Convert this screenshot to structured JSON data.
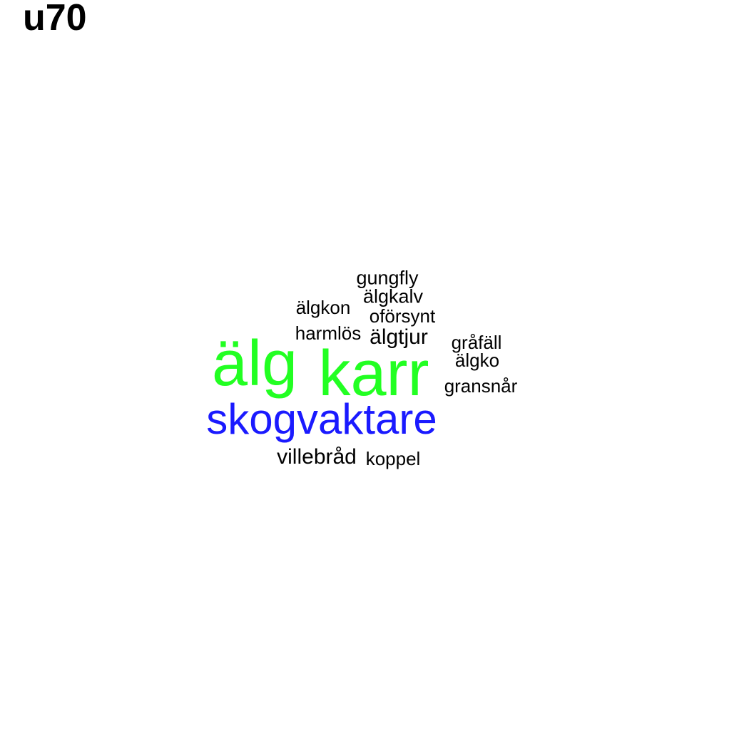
{
  "title": "u70",
  "words": [
    {
      "key": "alg",
      "text": "älg",
      "color": "#22ff22"
    },
    {
      "key": "karr",
      "text": "karr",
      "color": "#22ff22"
    },
    {
      "key": "skogvakt",
      "text": "skogvaktare",
      "color": "#1a1aff"
    },
    {
      "key": "gungfly",
      "text": "gungfly",
      "color": "#000000"
    },
    {
      "key": "algkalv",
      "text": "älgkalv",
      "color": "#000000"
    },
    {
      "key": "algkon",
      "text": "älgkon",
      "color": "#000000"
    },
    {
      "key": "oforsynt",
      "text": "oförsynt",
      "color": "#000000"
    },
    {
      "key": "harmlos",
      "text": "harmlös",
      "color": "#000000"
    },
    {
      "key": "algtjur",
      "text": "älgtjur",
      "color": "#000000"
    },
    {
      "key": "grafall",
      "text": "gråfäll",
      "color": "#000000"
    },
    {
      "key": "algko",
      "text": "älgko",
      "color": "#000000"
    },
    {
      "key": "gransnar",
      "text": "gransnår",
      "color": "#000000"
    },
    {
      "key": "villebrad",
      "text": "villebråd",
      "color": "#000000"
    },
    {
      "key": "koppel",
      "text": "koppel",
      "color": "#000000"
    }
  ]
}
